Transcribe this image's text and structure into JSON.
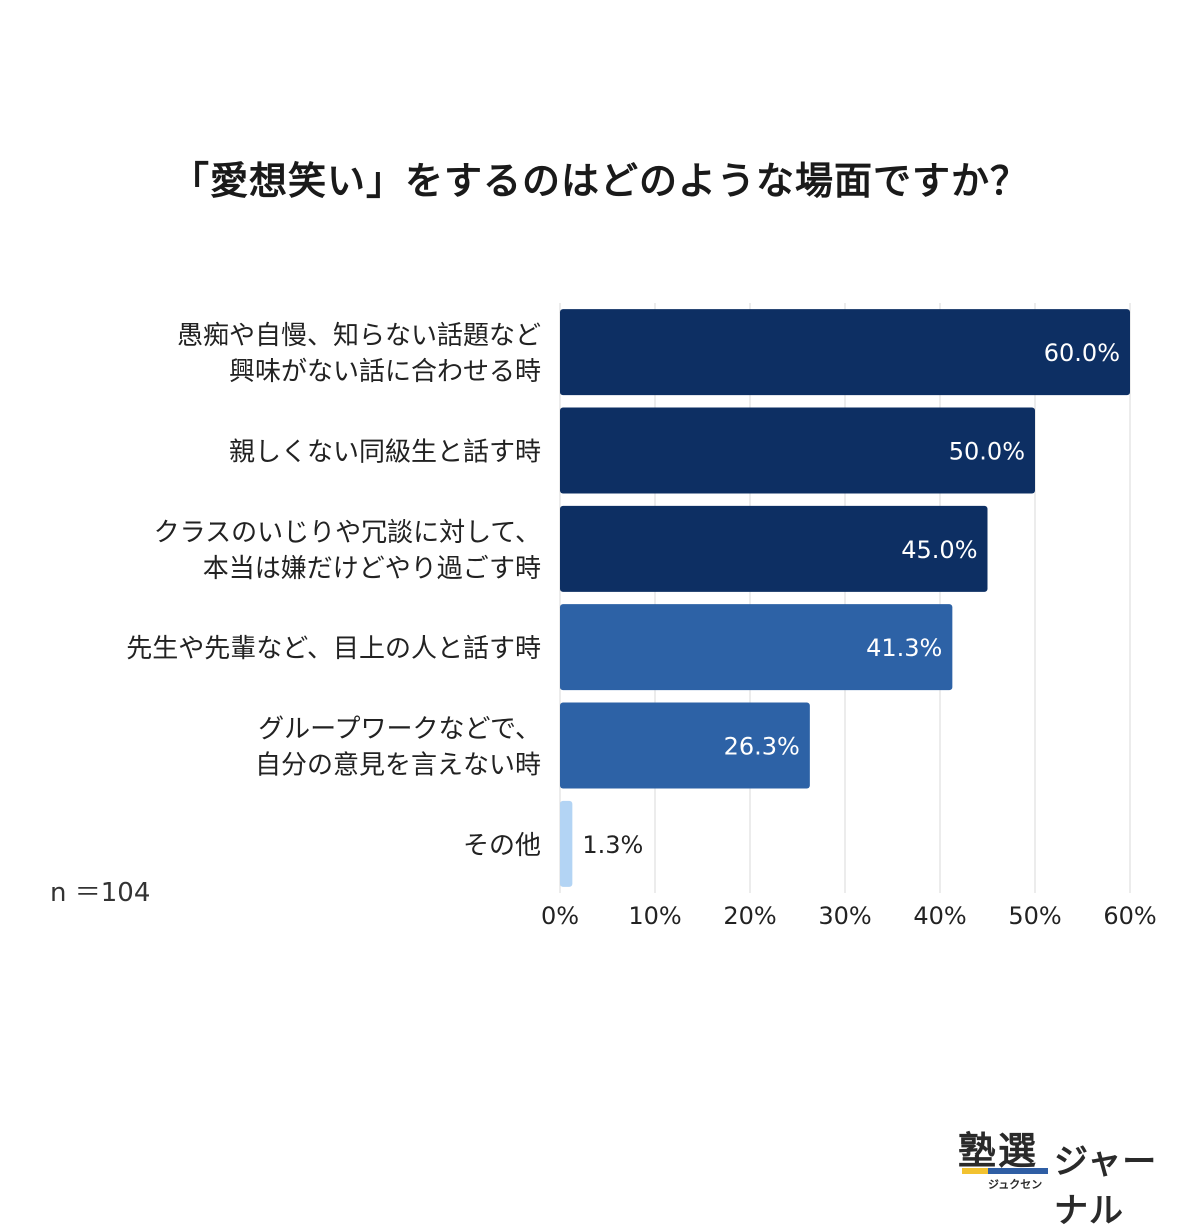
{
  "title": "「愛想笑い」をするのはどのような場面ですか？",
  "note": "n ＝104",
  "logo": {
    "mark": "塾選",
    "ruby": "ジュクセン",
    "text": "ジャーナル",
    "colors": {
      "underline": "#2f5ea4",
      "accent": "#f2c230"
    }
  },
  "chart_data": {
    "type": "bar",
    "orientation": "horizontal",
    "categories": [
      [
        "愚痴や自慢、知らない話題など",
        "興味がない話に合わせる時"
      ],
      [
        "親しくない同級生と話す時"
      ],
      [
        "クラスのいじりや冗談に対して、",
        "本当は嫌だけどやり過ごす時"
      ],
      [
        "先生や先輩など、目上の人と話す時"
      ],
      [
        "グループワークなどで、",
        "自分の意見を言えない時"
      ],
      [
        "その他"
      ]
    ],
    "values": [
      60.0,
      50.0,
      45.0,
      41.3,
      26.3,
      1.3
    ],
    "value_labels": [
      "60.0%",
      "50.0%",
      "45.0%",
      "41.3%",
      "26.3%",
      "1.3%"
    ],
    "bar_colors": [
      "#0d2f63",
      "#0d2f63",
      "#0d2f63",
      "#2d62a6",
      "#2d62a6",
      "#b3d4f4"
    ],
    "xlim": [
      0,
      60
    ],
    "xticks": [
      0,
      10,
      20,
      30,
      40,
      50,
      60
    ],
    "xtick_labels": [
      "0%",
      "10%",
      "20%",
      "30%",
      "40%",
      "50%",
      "60%"
    ],
    "grid": true
  }
}
